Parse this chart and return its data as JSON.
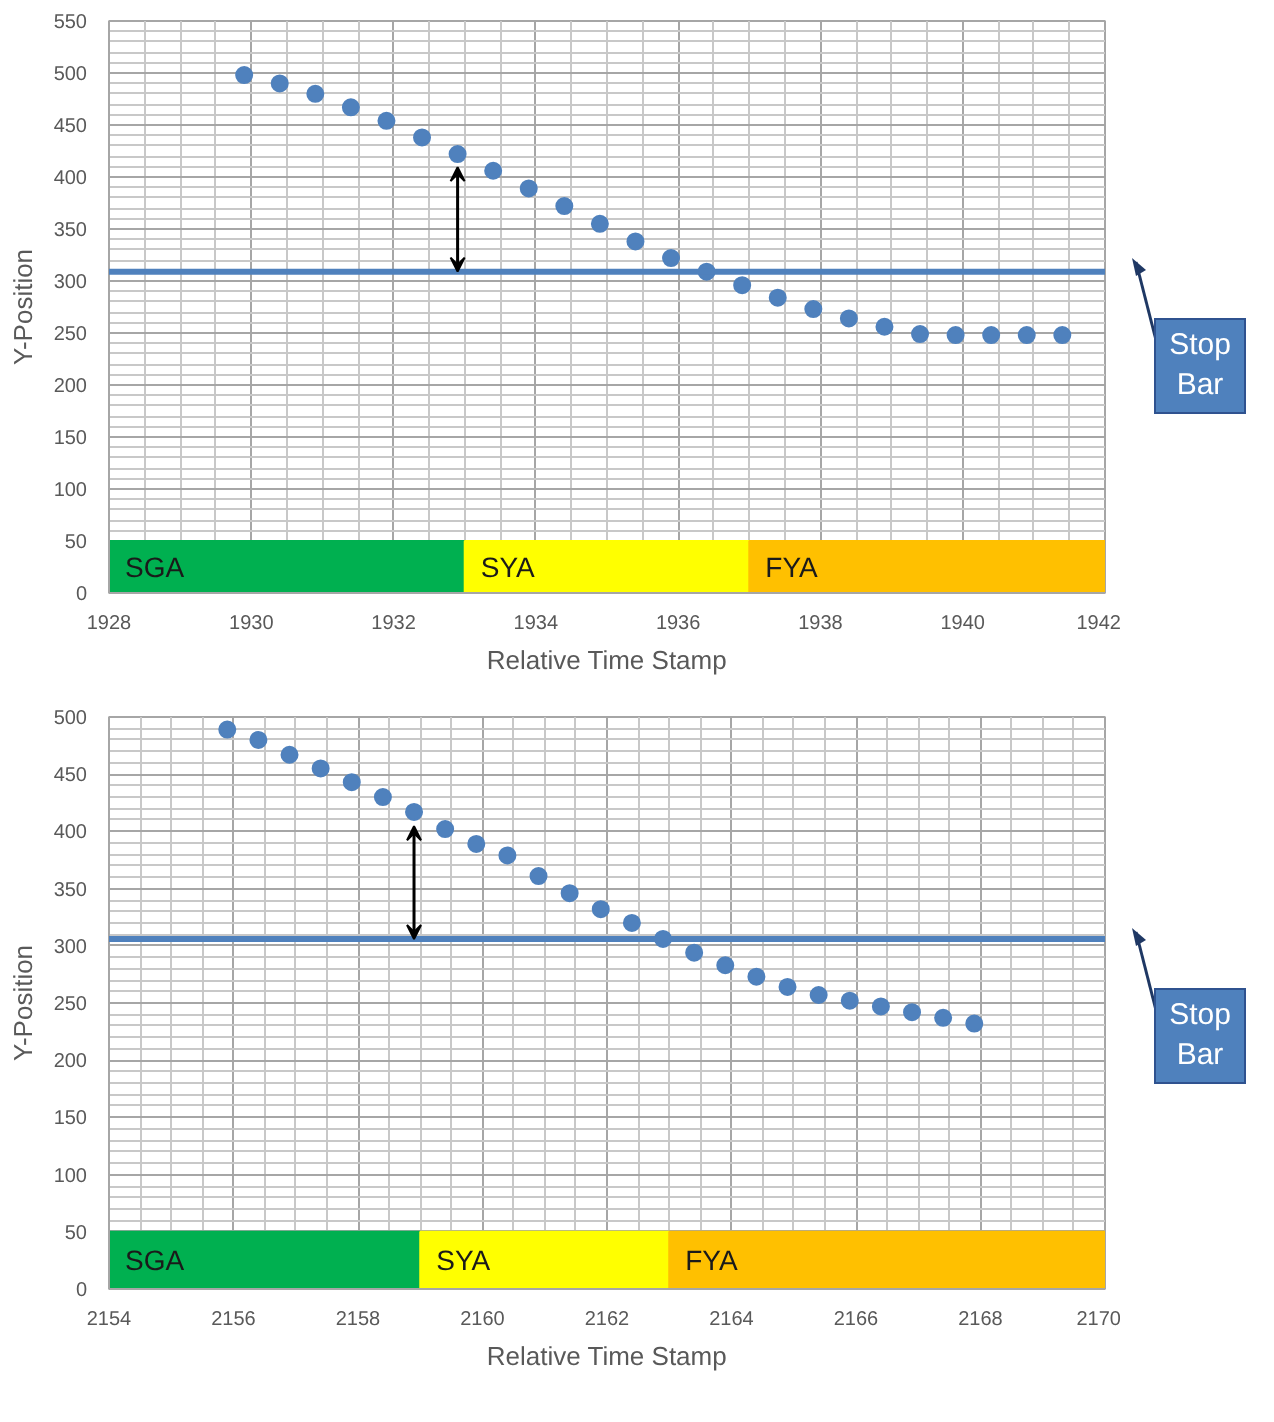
{
  "chart_data": [
    {
      "type": "scatter",
      "xlabel": "Relative Time Stamp",
      "ylabel": "Y-Position",
      "x": [
        1929.9,
        1930.4,
        1930.9,
        1931.4,
        1931.9,
        1932.4,
        1932.9,
        1933.4,
        1933.9,
        1934.4,
        1934.9,
        1935.4,
        1935.9,
        1936.4,
        1936.9,
        1937.4,
        1937.9,
        1938.4,
        1938.9,
        1939.4,
        1939.9,
        1940.4,
        1940.9,
        1941.4
      ],
      "series": [
        {
          "color": "#4f81bd",
          "values": [
            498,
            490,
            480,
            467,
            454,
            438,
            422,
            406,
            389,
            372,
            355,
            338,
            322,
            309,
            296,
            284,
            273,
            264,
            256,
            249,
            248,
            248,
            248,
            248
          ]
        }
      ],
      "marker": "circle",
      "xlim": [
        1928,
        1942
      ],
      "xticks": [
        1928,
        1930,
        1932,
        1934,
        1936,
        1938,
        1940,
        1942
      ],
      "ylim": [
        0,
        550
      ],
      "yticks": [
        0,
        50,
        100,
        150,
        200,
        250,
        300,
        350,
        400,
        450,
        500,
        550
      ],
      "grid": true,
      "ref_lines": [
        {
          "axis": "y",
          "value": 309,
          "label": "Stop Bar",
          "color": "#4f81bd"
        }
      ],
      "bands": [
        {
          "axis": "x",
          "from": 1928,
          "to": 1933,
          "label": "SGA",
          "color": "#00b050"
        },
        {
          "axis": "x",
          "from": 1933,
          "to": 1937,
          "label": "SYA",
          "color": "#ffff00"
        },
        {
          "axis": "x",
          "from": 1937,
          "to": 1942,
          "label": "FYA",
          "color": "#ffc000"
        }
      ]
    },
    {
      "type": "scatter",
      "xlabel": "Relative Time Stamp",
      "ylabel": "Y-Position",
      "x": [
        2155.9,
        2156.4,
        2156.9,
        2157.4,
        2157.9,
        2158.4,
        2158.9,
        2159.4,
        2159.9,
        2160.4,
        2160.9,
        2161.4,
        2161.9,
        2162.4,
        2162.9,
        2163.4,
        2163.9,
        2164.4,
        2164.9,
        2165.4,
        2165.9,
        2166.4,
        2166.9,
        2167.4,
        2167.9
      ],
      "series": [
        {
          "color": "#4f81bd",
          "values": [
            489,
            480,
            467,
            455,
            443,
            430,
            417,
            402,
            389,
            379,
            361,
            346,
            332,
            320,
            306,
            294,
            283,
            273,
            264,
            257,
            252,
            247,
            242,
            237,
            232
          ]
        }
      ],
      "marker": "circle",
      "xlim": [
        2154,
        2170
      ],
      "xticks": [
        2154,
        2156,
        2158,
        2160,
        2162,
        2164,
        2166,
        2168,
        2170
      ],
      "ylim": [
        0,
        500
      ],
      "yticks": [
        0,
        50,
        100,
        150,
        200,
        250,
        300,
        350,
        400,
        450,
        500
      ],
      "grid": true,
      "ref_lines": [
        {
          "axis": "y",
          "value": 306,
          "label": "Stop Bar",
          "color": "#4f81bd"
        }
      ],
      "bands": [
        {
          "axis": "x",
          "from": 2154,
          "to": 2159,
          "label": "SGA",
          "color": "#00b050"
        },
        {
          "axis": "x",
          "from": 2159,
          "to": 2163,
          "label": "SYA",
          "color": "#ffff00"
        },
        {
          "axis": "x",
          "from": 2163,
          "to": 2170,
          "label": "FYA",
          "color": "#ffc000"
        }
      ]
    }
  ]
}
